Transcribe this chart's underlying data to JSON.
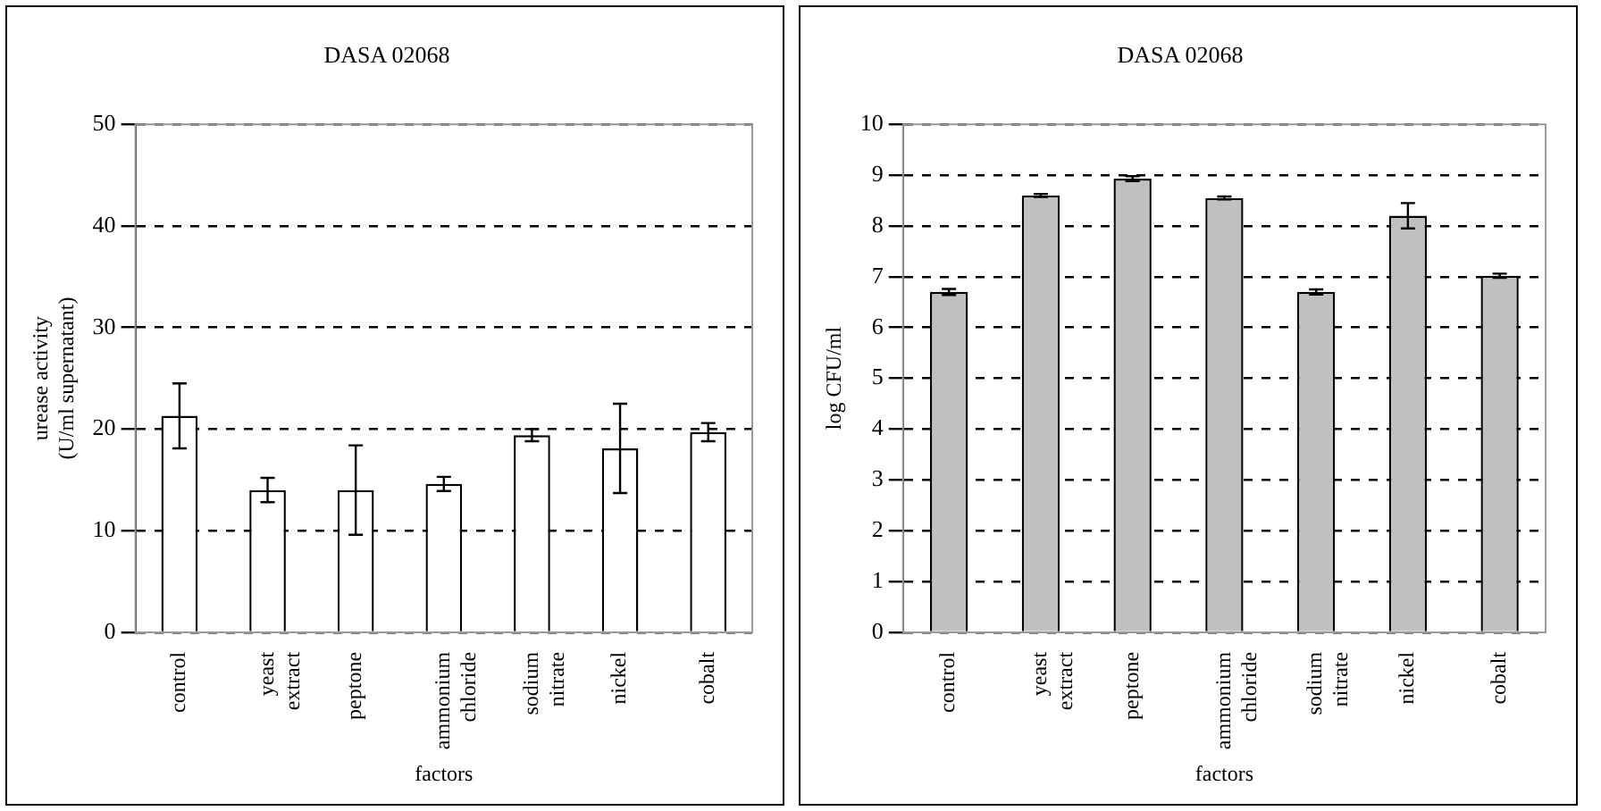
{
  "chart_data": [
    {
      "type": "bar",
      "title": "DASA 02068",
      "xlabel": "factors",
      "ylabel": "urease activity\n(U/ml supernatant)",
      "categories": [
        "control",
        "yeast extract",
        "peptone",
        "ammonium chloride",
        "sodium nitrate",
        "nickel",
        "cobalt"
      ],
      "values": [
        21.3,
        14,
        14,
        14.6,
        19.4,
        18.1,
        19.7
      ],
      "errors": [
        3.2,
        1.2,
        4.4,
        0.7,
        0.6,
        4.4,
        0.9
      ],
      "color": "#ffffff",
      "ylim": [
        0,
        50
      ],
      "yticks": [
        0,
        10,
        20,
        30,
        40,
        50
      ],
      "grid": "y",
      "legend": false
    },
    {
      "type": "bar",
      "title": "DASA 02068",
      "xlabel": "factors",
      "ylabel": "log CFU/ml",
      "categories": [
        "control",
        "yeast extract",
        "peptone",
        "ammonium chloride",
        "sodium nitrate",
        "nickel",
        "cobalt"
      ],
      "values": [
        6.7,
        8.6,
        8.93,
        8.55,
        6.7,
        8.2,
        7.02
      ],
      "errors": [
        0.06,
        0.03,
        0.05,
        0.03,
        0.05,
        0.25,
        0.04
      ],
      "color": "#c0c0c0",
      "ylim": [
        0,
        10
      ],
      "yticks": [
        0,
        1,
        2,
        3,
        4,
        5,
        6,
        7,
        8,
        9,
        10
      ],
      "grid": "y",
      "legend": false
    }
  ]
}
